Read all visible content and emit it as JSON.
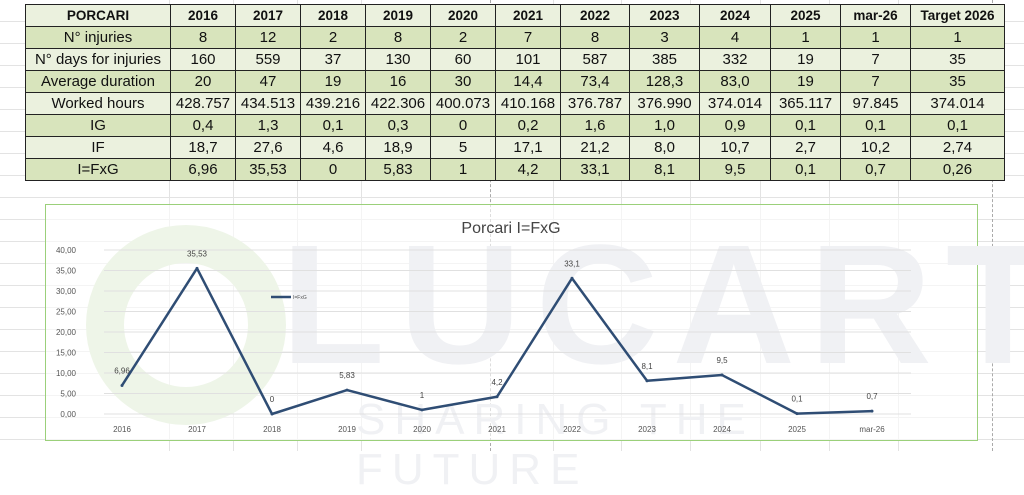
{
  "table": {
    "header": [
      "PORCARI",
      "2016",
      "2017",
      "2018",
      "2019",
      "2020",
      "2021",
      "2022",
      "2023",
      "2024",
      "2025",
      "mar-26",
      "Target 2026"
    ],
    "rows": [
      {
        "label": "N° injuries",
        "values": [
          "8",
          "12",
          "2",
          "8",
          "2",
          "7",
          "8",
          "3",
          "4",
          "1",
          "1",
          "1"
        ]
      },
      {
        "label": "N° days for injuries",
        "values": [
          "160",
          "559",
          "37",
          "130",
          "60",
          "101",
          "587",
          "385",
          "332",
          "19",
          "7",
          "35"
        ]
      },
      {
        "label": "Average duration",
        "values": [
          "20",
          "47",
          "19",
          "16",
          "30",
          "14,4",
          "73,4",
          "128,3",
          "83,0",
          "19",
          "7",
          "35"
        ]
      },
      {
        "label": "Worked hours",
        "values": [
          "428.757",
          "434.513",
          "439.216",
          "422.306",
          "400.073",
          "410.168",
          "376.787",
          "376.990",
          "374.014",
          "365.117",
          "97.845",
          "374.014"
        ]
      },
      {
        "label": "IG",
        "values": [
          "0,4",
          "1,3",
          "0,1",
          "0,3",
          "0",
          "0,2",
          "1,6",
          "1,0",
          "0,9",
          "0,1",
          "0,1",
          "0,1"
        ]
      },
      {
        "label": "IF",
        "values": [
          "18,7",
          "27,6",
          "4,6",
          "18,9",
          "5",
          "17,1",
          "21,2",
          "8,0",
          "10,7",
          "2,7",
          "10,2",
          "2,74"
        ]
      },
      {
        "label": "I=FxG",
        "values": [
          "6,96",
          "35,53",
          "0",
          "5,83",
          "1",
          "4,2",
          "33,1",
          "8,1",
          "9,5",
          "0,1",
          "0,7",
          "0,26"
        ]
      }
    ]
  },
  "watermark": {
    "logo": "LUCART",
    "tagline": "SHARING THE FUTURE"
  },
  "chart_data": {
    "type": "line",
    "title": "Porcari I=FxG",
    "categories": [
      "2016",
      "2017",
      "2018",
      "2019",
      "2020",
      "2021",
      "2022",
      "2023",
      "2024",
      "2025",
      "mar-26"
    ],
    "series": [
      {
        "name": "I=FxG",
        "values": [
          6.96,
          35.53,
          0,
          5.83,
          1,
          4.2,
          33.1,
          8.1,
          9.5,
          0.1,
          0.7
        ],
        "labels": [
          "6,96",
          "35,53",
          "0",
          "5,83",
          "1",
          "4,2",
          "33,1",
          "8,1",
          "9,5",
          "0,1",
          "0,7"
        ],
        "color": "#2f4d74"
      }
    ],
    "yticks": [
      "0,00",
      "5,00",
      "10,00",
      "15,00",
      "20,00",
      "25,00",
      "30,00",
      "35,00",
      "40,00"
    ],
    "ylim": [
      0,
      40
    ],
    "grid": true,
    "legend": "top-left"
  }
}
